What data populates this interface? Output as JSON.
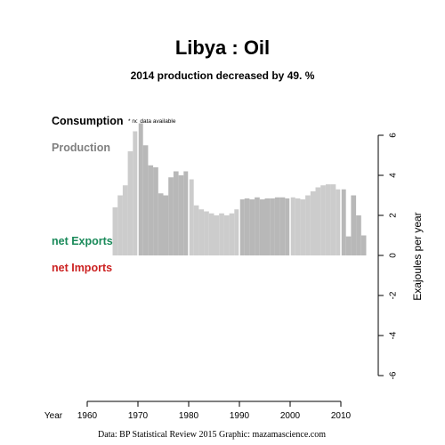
{
  "colors": {
    "consumption": "#000000",
    "production": "#808080",
    "net_exports": "#1a8a5a",
    "net_imports": "#cc2222",
    "bar_light": "#cccccc",
    "bar_dark": "#b8b8b8"
  },
  "chart_data": {
    "type": "bar",
    "title": "Libya :  Oil",
    "subtitle": "2014 production decreased by 49. %",
    "note": "* no data available",
    "legend": {
      "consumption": "Consumption",
      "production": "Production",
      "net_exports": "net Exports",
      "net_imports": "net Imports",
      "placement": "left"
    },
    "xlabel": "Year",
    "ylabel": "Exajoules per year",
    "x_ticks": [
      1960,
      1970,
      1980,
      1990,
      2000,
      2010
    ],
    "y_ticks": [
      6,
      4,
      2,
      0,
      -2,
      -4,
      -6
    ],
    "xlim": [
      1960,
      2015
    ],
    "ylim": [
      -6,
      6
    ],
    "grid": false,
    "series": [
      {
        "name": "Production",
        "x": [
          1965,
          1966,
          1967,
          1968,
          1969,
          1970,
          1971,
          1972,
          1973,
          1974,
          1975,
          1976,
          1977,
          1978,
          1979,
          1980,
          1981,
          1982,
          1983,
          1984,
          1985,
          1986,
          1987,
          1988,
          1989,
          1990,
          1991,
          1992,
          1993,
          1994,
          1995,
          1996,
          1997,
          1998,
          1999,
          2000,
          2001,
          2002,
          2003,
          2004,
          2005,
          2006,
          2007,
          2008,
          2009,
          2010,
          2011,
          2012,
          2013,
          2014
        ],
        "values": [
          2.4,
          3.0,
          3.5,
          5.2,
          6.2,
          6.6,
          5.5,
          4.5,
          4.4,
          3.1,
          3.0,
          3.9,
          4.2,
          4.0,
          4.2,
          3.8,
          2.5,
          2.3,
          2.2,
          2.1,
          2.0,
          2.1,
          2.0,
          2.1,
          2.3,
          2.8,
          2.85,
          2.8,
          2.9,
          2.8,
          2.85,
          2.85,
          2.9,
          2.9,
          2.85,
          2.9,
          2.85,
          2.8,
          3.0,
          3.2,
          3.4,
          3.5,
          3.55,
          3.55,
          3.3,
          3.3,
          0.95,
          3.0,
          2.0,
          1.0
        ]
      }
    ],
    "source": "Data: BP Statistical Review 2015    Graphic: mazamascience.com"
  }
}
